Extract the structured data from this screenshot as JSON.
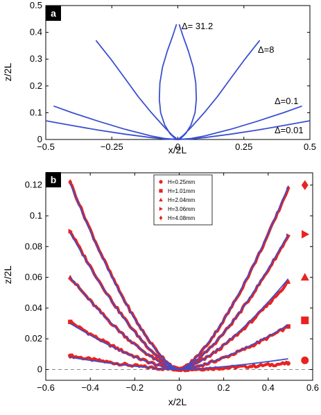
{
  "chart_data": [
    {
      "panel_label": "a",
      "type": "line",
      "xlabel": "x/2L",
      "ylabel": "z/2L",
      "xlim": [
        -0.5,
        0.5
      ],
      "ylim": [
        0,
        0.5
      ],
      "xticks": [
        -0.5,
        -0.25,
        0,
        0.25,
        0.5
      ],
      "xtick_labels": [
        "−0.5",
        "−0.25",
        "0",
        "0.25",
        "0.5"
      ],
      "yticks": [
        0,
        0.1,
        0.2,
        0.3,
        0.4,
        0.5
      ],
      "ytick_labels": [
        "0",
        "0.1",
        "0.2",
        "0.3",
        "0.4",
        "0.5"
      ],
      "line_color": "#3a4fcf",
      "series": [
        {
          "name": "Δ= 31.2",
          "points": [
            [
              -0.005,
              0.43
            ],
            [
              -0.02,
              0.385
            ],
            [
              -0.04,
              0.33
            ],
            [
              -0.058,
              0.27
            ],
            [
              -0.068,
              0.21
            ],
            [
              -0.07,
              0.15
            ],
            [
              -0.065,
              0.1
            ],
            [
              -0.05,
              0.055
            ],
            [
              -0.03,
              0.022
            ],
            [
              -0.012,
              0.005
            ],
            [
              0,
              0
            ],
            [
              0.012,
              0.005
            ],
            [
              0.03,
              0.022
            ],
            [
              0.05,
              0.055
            ],
            [
              0.065,
              0.1
            ],
            [
              0.07,
              0.15
            ],
            [
              0.068,
              0.21
            ],
            [
              0.058,
              0.27
            ],
            [
              0.04,
              0.33
            ],
            [
              0.02,
              0.385
            ],
            [
              0.005,
              0.43
            ]
          ]
        },
        {
          "name": "Δ=8",
          "points": [
            [
              -0.31,
              0.37
            ],
            [
              -0.25,
              0.295
            ],
            [
              -0.2,
              0.228
            ],
            [
              -0.15,
              0.16
            ],
            [
              -0.1,
              0.1
            ],
            [
              -0.05,
              0.045
            ],
            [
              -0.02,
              0.015
            ],
            [
              0,
              0
            ],
            [
              0.02,
              0.015
            ],
            [
              0.05,
              0.045
            ],
            [
              0.1,
              0.1
            ],
            [
              0.15,
              0.16
            ],
            [
              0.2,
              0.228
            ],
            [
              0.25,
              0.295
            ],
            [
              0.31,
              0.37
            ]
          ]
        },
        {
          "name": "Δ=0.1",
          "points": [
            [
              -0.47,
              0.125
            ],
            [
              -0.4,
              0.1
            ],
            [
              -0.3,
              0.068
            ],
            [
              -0.2,
              0.038
            ],
            [
              -0.1,
              0.013
            ],
            [
              -0.05,
              0.004
            ],
            [
              0,
              0
            ],
            [
              0.05,
              0.004
            ],
            [
              0.1,
              0.013
            ],
            [
              0.2,
              0.038
            ],
            [
              0.3,
              0.068
            ],
            [
              0.4,
              0.1
            ],
            [
              0.47,
              0.125
            ]
          ]
        },
        {
          "name": "Δ=0.01",
          "points": [
            [
              -0.5,
              0.07
            ],
            [
              -0.4,
              0.052
            ],
            [
              -0.3,
              0.035
            ],
            [
              -0.2,
              0.02
            ],
            [
              -0.1,
              0.007
            ],
            [
              -0.05,
              0.002
            ],
            [
              0,
              0
            ],
            [
              0.05,
              0.002
            ],
            [
              0.1,
              0.007
            ],
            [
              0.2,
              0.02
            ],
            [
              0.3,
              0.035
            ],
            [
              0.4,
              0.052
            ],
            [
              0.5,
              0.07
            ]
          ]
        }
      ]
    },
    {
      "panel_label": "b",
      "type": "scatter",
      "xlabel": "x/2L",
      "ylabel": "z/2L",
      "xlim": [
        -0.6,
        0.6
      ],
      "ylim": [
        -0.007,
        0.128
      ],
      "xticks": [
        -0.6,
        -0.4,
        -0.2,
        0,
        0.2,
        0.4,
        0.6
      ],
      "xtick_labels": [
        "−0.6",
        "−0.4",
        "−0.2",
        "0",
        "0.2",
        "0.4",
        "0.6"
      ],
      "yticks": [
        0,
        0.02,
        0.04,
        0.06,
        0.08,
        0.1,
        0.12
      ],
      "ytick_labels": [
        "0",
        "0.02",
        "0.04",
        "0.06",
        "0.08",
        "0.1",
        "0.12"
      ],
      "zero_line": "dashed",
      "legend_position": "top-center",
      "data_color": "#e8231f",
      "fit_color": "#3a4fcf",
      "series": [
        {
          "name": "H=0.25mm",
          "marker": "circle",
          "left_y": 0.009,
          "right_y": 0.004,
          "fit_left_y": 0.008,
          "fit_right_y": 0.007,
          "side_marker_y": 0.006
        },
        {
          "name": "H=1.01mm",
          "marker": "square",
          "left_y": 0.031,
          "right_y": 0.028,
          "fit_left_y": 0.03,
          "fit_right_y": 0.029,
          "side_marker_y": 0.032
        },
        {
          "name": "H=2.04mm",
          "marker": "triangle-up",
          "left_y": 0.06,
          "right_y": 0.057,
          "fit_left_y": 0.06,
          "fit_right_y": 0.059,
          "side_marker_y": 0.06
        },
        {
          "name": "H=3.06mm",
          "marker": "triangle-right",
          "left_y": 0.09,
          "right_y": 0.087,
          "fit_left_y": 0.089,
          "fit_right_y": 0.088,
          "side_marker_y": 0.088
        },
        {
          "name": "H=4.08mm",
          "marker": "diamond",
          "left_y": 0.122,
          "right_y": 0.118,
          "fit_left_y": 0.121,
          "fit_right_y": 0.119,
          "side_marker_y": 0.12
        }
      ]
    }
  ]
}
